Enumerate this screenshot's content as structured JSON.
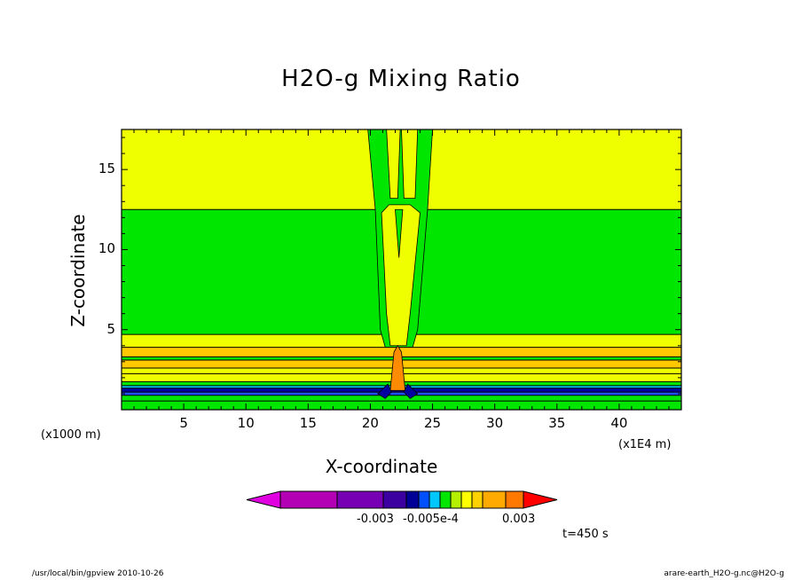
{
  "chart_data": {
    "type": "heatmap",
    "title": "H2O-g Mixing Ratio",
    "xlabel": "X-coordinate",
    "ylabel": "Z-coordinate",
    "x_unit": "(x1E4 m)",
    "y_unit": "(x1000 m)",
    "xlim": [
      0,
      45
    ],
    "ylim": [
      0,
      17.5
    ],
    "x_ticks": [
      5,
      10,
      15,
      20,
      25,
      30,
      35,
      40
    ],
    "y_ticks": [
      5,
      10,
      15
    ],
    "colorbar_labels": [
      "-0.003",
      "-0.005e-4",
      "0.003"
    ],
    "colorbar_colors": [
      "#b400b4",
      "#7800b4",
      "#3c00a0",
      "#000096",
      "#0050ff",
      "#00c8ff",
      "#00e600",
      "#b4f000",
      "#ffff00",
      "#ffd200",
      "#ffaa00",
      "#ff7800",
      "#ff0000"
    ],
    "time_label": "t=450 s",
    "fields": {
      "yellow": "#f0ff00",
      "green": "#00e600",
      "gold": "#ffc800",
      "blue": "#1e50ff",
      "navy": "#0000a0",
      "orange": "#ff8c00"
    }
  },
  "footer": {
    "left": "/usr/local/bin/gpview   2010-10-26",
    "right": "arare-earth_H2O-g.nc@H2O-g"
  }
}
